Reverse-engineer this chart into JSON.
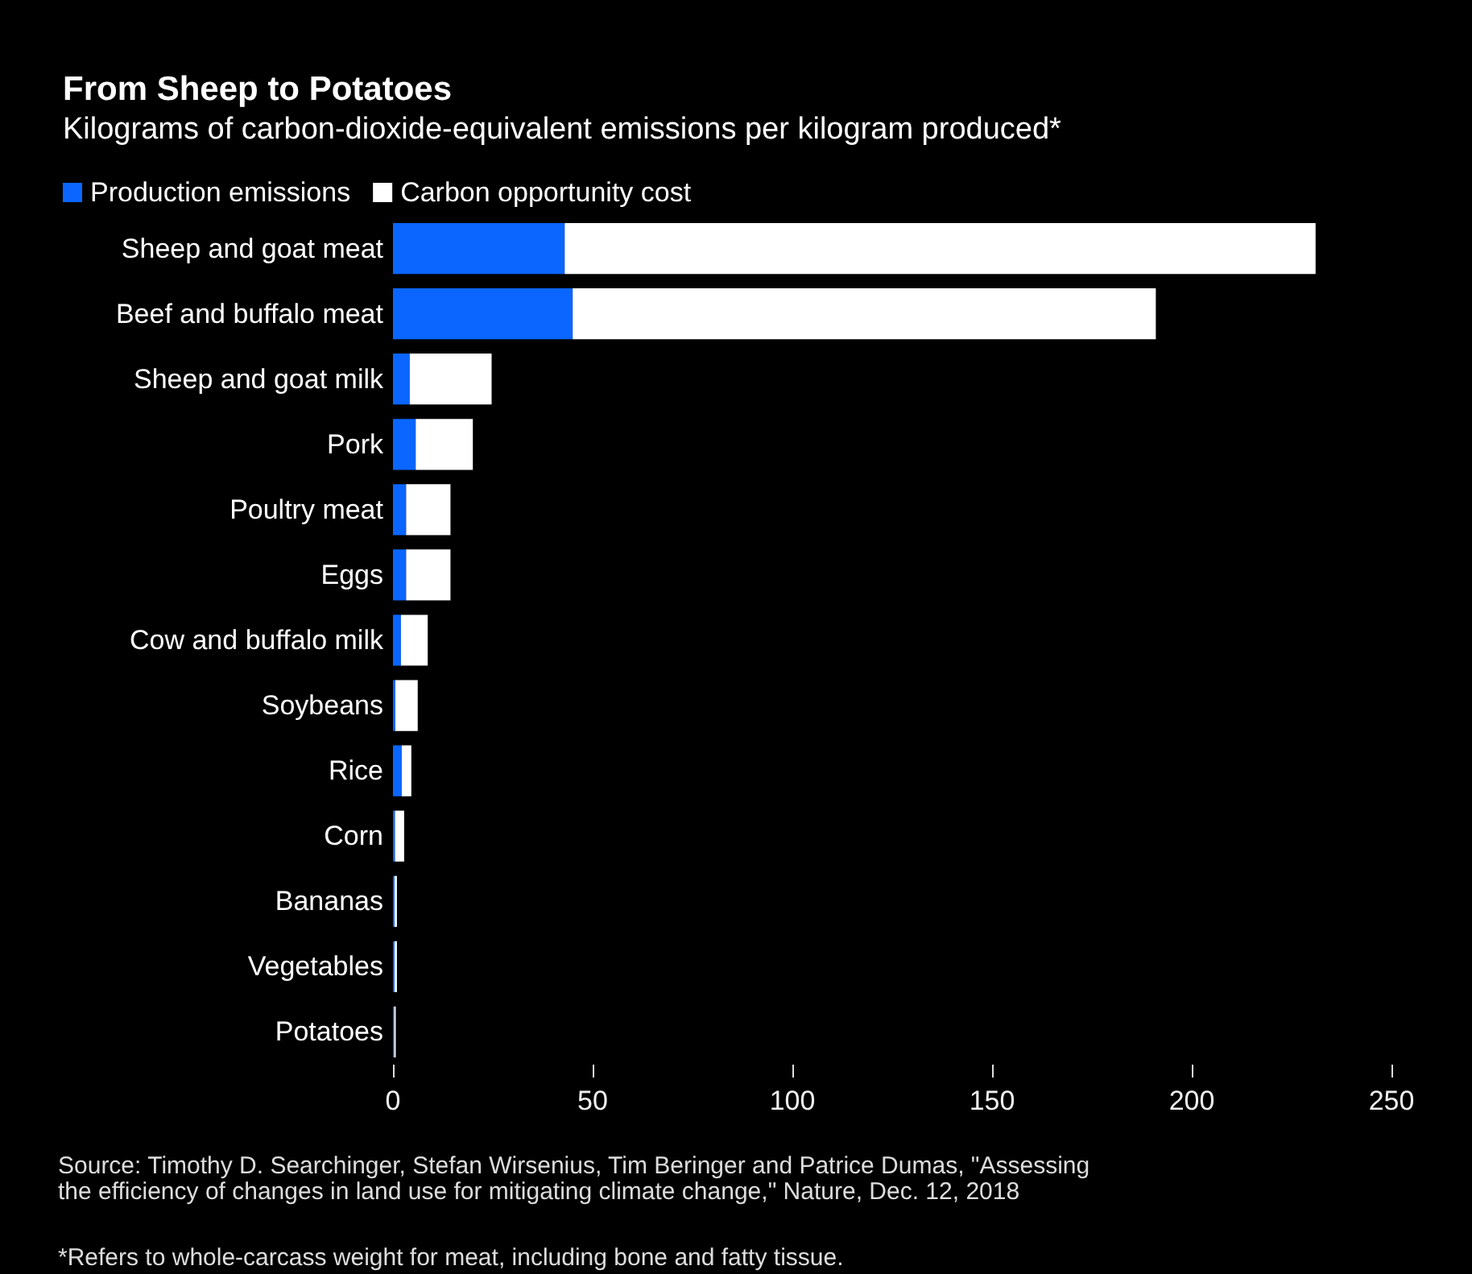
{
  "chart_data": {
    "type": "bar",
    "orientation": "horizontal",
    "stacked": true,
    "title": "From Sheep to Potatoes",
    "subtitle": "Kilograms of carbon-dioxide-equivalent emissions per kilogram produced*",
    "categories": [
      "Sheep and goat meat",
      "Beef and buffalo meat",
      "Sheep and goat milk",
      "Pork",
      "Poultry meat",
      "Eggs",
      "Cow and buffalo milk",
      "Soybeans",
      "Rice",
      "Corn",
      "Bananas",
      "Vegetables",
      "Potatoes"
    ],
    "series": [
      {
        "name": "Production emissions",
        "color": "#0a66ff",
        "values": [
          43,
          45,
          4.2,
          5.7,
          3.3,
          3.3,
          2.0,
          0.6,
          2.2,
          0.5,
          0.4,
          0.4,
          0.3
        ]
      },
      {
        "name": "Carbon opportunity cost",
        "color": "#ffffff",
        "values": [
          188,
          146,
          20.5,
          14.3,
          11.1,
          11.1,
          6.7,
          5.6,
          2.4,
          2.3,
          0.6,
          0.6,
          0.4
        ]
      }
    ],
    "xlim": [
      0,
      250
    ],
    "xticks": [
      0,
      50,
      100,
      150,
      200,
      250
    ],
    "grid": false,
    "legend": "top left",
    "annotations": [
      "Source: Timothy D. Searchinger, Stefan Wirsenius, Tim Beringer and Patrice Dumas, \"Assessing the efficiency of changes in land use for mitigating climate change,\" Nature, Dec. 12, 2018",
      "*Refers to whole-carcass weight for meat, including bone and fatty tissue."
    ]
  }
}
